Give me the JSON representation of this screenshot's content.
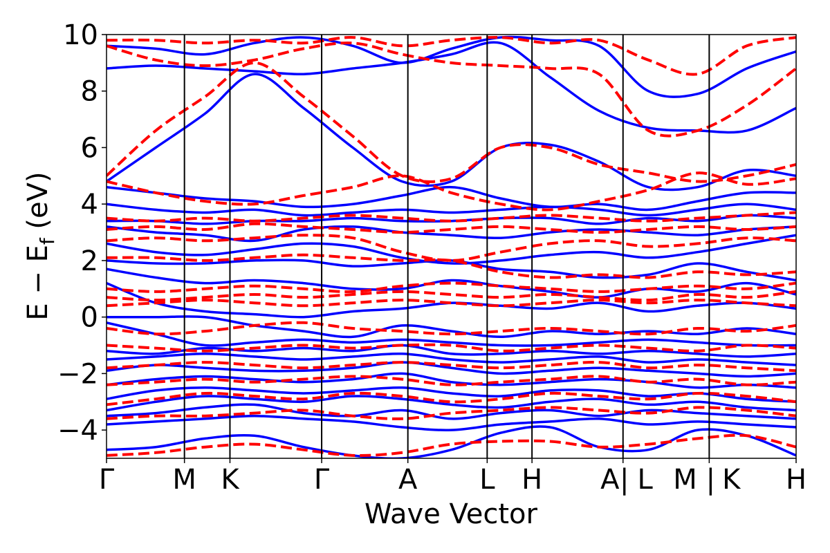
{
  "chart_data": {
    "type": "line",
    "title": "",
    "xlabel": "Wave Vector",
    "ylabel_main": "E − E",
    "ylabel_sub": "f",
    "ylabel_unit": " (eV)",
    "ylim": [
      -5,
      10
    ],
    "yticks": [
      -4,
      -2,
      0,
      2,
      4,
      6,
      8,
      10
    ],
    "ytick_labels": [
      "−4",
      "−2",
      "0",
      "2",
      "4",
      "6",
      "8",
      "10"
    ],
    "k_path_positions": [
      0,
      0.113,
      0.179,
      0.312,
      0.437,
      0.552,
      0.617,
      0.749,
      0.874,
      1.0
    ],
    "k_labels": [
      {
        "label": "Γ",
        "k": 0.0
      },
      {
        "label": "M",
        "k": 0.113
      },
      {
        "label": "K",
        "k": 0.179
      },
      {
        "label": "Γ",
        "k": 0.312
      },
      {
        "label": "A",
        "k": 0.437
      },
      {
        "label": "L",
        "k": 0.552
      },
      {
        "label": "H",
        "k": 0.617
      },
      {
        "label": "A",
        "k": 0.73
      },
      {
        "label": "|",
        "k": 0.751
      },
      {
        "label": "L",
        "k": 0.781
      },
      {
        "label": "M",
        "k": 0.839
      },
      {
        "label": "|",
        "k": 0.876
      },
      {
        "label": "K",
        "k": 0.906
      },
      {
        "label": "H",
        "k": 1.0
      }
    ],
    "colors": {
      "series_a": "#0000ff",
      "series_b": "#ff0000"
    },
    "series": [
      {
        "name": "solid",
        "style": "solid",
        "bands": [
          [
            -4.7,
            -4.6,
            -4.3,
            -4.2,
            -4.6,
            -4.9,
            -5.0,
            -4.7,
            -4.1,
            -3.9,
            -4.6,
            -4.7,
            -4.0,
            -4.2,
            -4.9
          ],
          [
            -3.8,
            -3.7,
            -3.6,
            -3.5,
            -3.6,
            -3.7,
            -3.9,
            -4.0,
            -3.8,
            -3.7,
            -3.6,
            -3.8,
            -3.7,
            -3.8,
            -3.9
          ],
          [
            -3.5,
            -3.4,
            -3.2,
            -3.1,
            -3.4,
            -3.5,
            -3.3,
            -3.6,
            -3.4,
            -3.3,
            -3.5,
            -3.3,
            -3.4,
            -3.5,
            -3.6
          ],
          [
            -3.3,
            -3.0,
            -2.8,
            -2.9,
            -3.0,
            -2.8,
            -2.9,
            -3.1,
            -3.2,
            -3.0,
            -2.9,
            -3.1,
            -3.0,
            -3.2,
            -3.3
          ],
          [
            -2.9,
            -2.6,
            -2.5,
            -2.6,
            -2.7,
            -2.6,
            -2.5,
            -2.7,
            -2.8,
            -2.6,
            -2.6,
            -2.8,
            -2.7,
            -2.9,
            -3.0
          ],
          [
            -2.4,
            -2.2,
            -2.1,
            -2.2,
            -2.3,
            -2.2,
            -2.0,
            -2.3,
            -2.4,
            -2.3,
            -2.2,
            -2.3,
            -2.5,
            -2.4,
            -2.5
          ],
          [
            -1.9,
            -1.7,
            -1.8,
            -1.9,
            -1.9,
            -1.8,
            -1.6,
            -1.8,
            -2.0,
            -1.9,
            -1.8,
            -1.9,
            -2.0,
            -2.1,
            -2.0
          ],
          [
            -1.5,
            -1.4,
            -1.3,
            -1.4,
            -1.5,
            -1.4,
            -1.3,
            -1.5,
            -1.6,
            -1.5,
            -1.4,
            -1.6,
            -1.5,
            -1.6,
            -1.7
          ],
          [
            -1.2,
            -1.3,
            -1.1,
            -1.2,
            -1.1,
            -1.2,
            -1.0,
            -1.3,
            -1.3,
            -1.2,
            -1.3,
            -1.2,
            -1.3,
            -1.4,
            -1.3
          ],
          [
            -0.2,
            -0.6,
            -1.0,
            -0.9,
            -0.8,
            -0.9,
            -0.8,
            -0.9,
            -1.0,
            -1.0,
            -0.9,
            -0.8,
            -0.9,
            -1.0,
            -1.0
          ],
          [
            0.0,
            0.0,
            0.0,
            -0.3,
            -0.5,
            -0.7,
            -0.3,
            -0.5,
            -0.7,
            -0.5,
            -0.6,
            -0.5,
            -0.6,
            -0.4,
            -0.6
          ],
          [
            1.2,
            0.5,
            0.2,
            0.1,
            0.0,
            0.2,
            0.3,
            0.5,
            0.4,
            0.3,
            0.5,
            0.2,
            0.4,
            0.5,
            0.3
          ],
          [
            1.7,
            1.4,
            1.2,
            1.3,
            1.2,
            1.0,
            1.0,
            1.3,
            1.1,
            0.9,
            0.7,
            1.0,
            0.9,
            1.2,
            0.8
          ],
          [
            2.0,
            1.9,
            1.9,
            2.0,
            2.0,
            1.8,
            1.9,
            2.0,
            1.7,
            1.6,
            1.4,
            1.5,
            1.9,
            1.6,
            1.3
          ],
          [
            2.6,
            2.3,
            2.2,
            2.4,
            2.6,
            2.5,
            2.1,
            1.9,
            2.0,
            2.2,
            2.3,
            2.1,
            2.3,
            2.6,
            2.9
          ],
          [
            3.2,
            3.0,
            2.9,
            2.7,
            3.1,
            3.2,
            3.0,
            2.9,
            2.8,
            3.0,
            3.1,
            3.0,
            2.9,
            3.1,
            3.2
          ],
          [
            3.4,
            3.4,
            3.3,
            3.4,
            3.4,
            3.5,
            3.4,
            3.4,
            3.5,
            3.5,
            3.3,
            3.5,
            3.4,
            3.6,
            3.5
          ],
          [
            4.0,
            3.8,
            3.7,
            3.8,
            3.6,
            3.7,
            3.8,
            3.7,
            3.8,
            3.9,
            3.8,
            3.6,
            3.8,
            4.0,
            3.8
          ],
          [
            4.6,
            4.4,
            4.2,
            4.1,
            3.9,
            4.0,
            4.3,
            4.6,
            4.2,
            3.9,
            4.0,
            3.8,
            4.1,
            4.4,
            4.4
          ],
          [
            4.8,
            6.0,
            7.2,
            8.6,
            7.4,
            6.0,
            4.8,
            4.8,
            6.0,
            6.1,
            5.5,
            4.6,
            4.6,
            5.2,
            5.0
          ],
          [
            8.8,
            8.9,
            8.8,
            8.7,
            8.6,
            8.8,
            9.0,
            9.3,
            9.7,
            8.5,
            7.3,
            6.7,
            6.6,
            6.6,
            7.4
          ],
          [
            9.6,
            9.5,
            9.3,
            9.7,
            9.9,
            9.6,
            9.0,
            9.5,
            9.9,
            9.8,
            9.6,
            8.0,
            7.9,
            8.8,
            9.4
          ]
        ]
      },
      {
        "name": "dashed",
        "style": "dashed",
        "bands": [
          [
            -4.9,
            -4.8,
            -4.6,
            -4.5,
            -4.7,
            -4.9,
            -4.8,
            -4.5,
            -4.4,
            -4.4,
            -4.6,
            -4.5,
            -4.3,
            -4.2,
            -4.6
          ],
          [
            -3.6,
            -3.5,
            -3.5,
            -3.4,
            -3.3,
            -3.5,
            -3.6,
            -3.4,
            -3.3,
            -3.2,
            -3.3,
            -3.4,
            -3.2,
            -3.3,
            -3.5
          ],
          [
            -3.1,
            -2.9,
            -2.7,
            -2.8,
            -2.9,
            -2.7,
            -2.8,
            -3.0,
            -2.9,
            -2.7,
            -2.8,
            -2.9,
            -2.7,
            -2.8,
            -3.0
          ],
          [
            -2.4,
            -2.3,
            -2.2,
            -2.3,
            -2.2,
            -2.1,
            -2.2,
            -2.4,
            -2.3,
            -2.2,
            -2.1,
            -2.3,
            -2.2,
            -2.4,
            -2.3
          ],
          [
            -1.8,
            -1.7,
            -1.6,
            -1.7,
            -1.8,
            -1.7,
            -1.6,
            -1.7,
            -1.8,
            -1.7,
            -1.6,
            -1.8,
            -1.7,
            -1.8,
            -1.9
          ],
          [
            -1.0,
            -1.1,
            -1.2,
            -1.1,
            -1.0,
            -1.1,
            -1.0,
            -1.0,
            -1.2,
            -1.1,
            -1.0,
            -1.1,
            -1.2,
            -1.0,
            -1.1
          ],
          [
            -0.4,
            -0.6,
            -0.5,
            -0.3,
            -0.2,
            -0.4,
            -0.5,
            -0.6,
            -0.5,
            -0.4,
            -0.5,
            -0.6,
            -0.4,
            -0.5,
            -0.3
          ],
          [
            0.4,
            0.5,
            0.6,
            0.5,
            0.4,
            0.5,
            0.6,
            0.5,
            0.4,
            0.5,
            0.6,
            0.5,
            0.6,
            0.5,
            0.4
          ],
          [
            0.7,
            0.6,
            0.7,
            0.8,
            0.7,
            0.8,
            0.9,
            0.8,
            0.7,
            0.8,
            0.7,
            0.6,
            0.8,
            0.7,
            0.9
          ],
          [
            1.0,
            0.9,
            1.0,
            1.1,
            1.0,
            0.9,
            1.1,
            1.2,
            1.1,
            1.0,
            0.9,
            1.0,
            1.1,
            1.0,
            1.2
          ],
          [
            2.1,
            2.1,
            2.0,
            2.1,
            2.2,
            2.1,
            2.0,
            2.0,
            1.6,
            1.4,
            1.5,
            1.4,
            1.6,
            1.5,
            1.6
          ],
          [
            2.7,
            2.8,
            2.7,
            2.8,
            2.9,
            2.8,
            2.3,
            2.0,
            2.3,
            2.6,
            2.7,
            2.5,
            2.6,
            2.8,
            2.7
          ],
          [
            3.1,
            3.2,
            3.1,
            3.3,
            3.2,
            3.1,
            3.0,
            3.1,
            3.2,
            3.1,
            3.0,
            3.1,
            3.2,
            3.1,
            3.2
          ],
          [
            3.5,
            3.4,
            3.5,
            3.4,
            3.5,
            3.6,
            3.5,
            3.4,
            3.5,
            3.6,
            3.5,
            3.4,
            3.5,
            3.6,
            3.7
          ],
          [
            4.8,
            4.4,
            4.1,
            4.0,
            4.3,
            4.6,
            5.0,
            4.4,
            4.0,
            3.8,
            4.1,
            4.5,
            5.1,
            4.7,
            4.9
          ],
          [
            5.0,
            6.6,
            7.8,
            9.0,
            7.8,
            6.4,
            5.0,
            4.9,
            6.0,
            6.0,
            5.4,
            5.1,
            4.8,
            5.0,
            5.4
          ],
          [
            9.6,
            9.1,
            8.9,
            9.1,
            9.5,
            9.7,
            9.3,
            9.0,
            8.9,
            8.8,
            8.6,
            6.6,
            6.6,
            7.5,
            8.8
          ],
          [
            9.8,
            9.8,
            9.7,
            9.8,
            9.7,
            9.9,
            9.6,
            9.8,
            9.9,
            9.7,
            9.8,
            9.1,
            8.6,
            9.6,
            9.9
          ]
        ]
      }
    ]
  }
}
